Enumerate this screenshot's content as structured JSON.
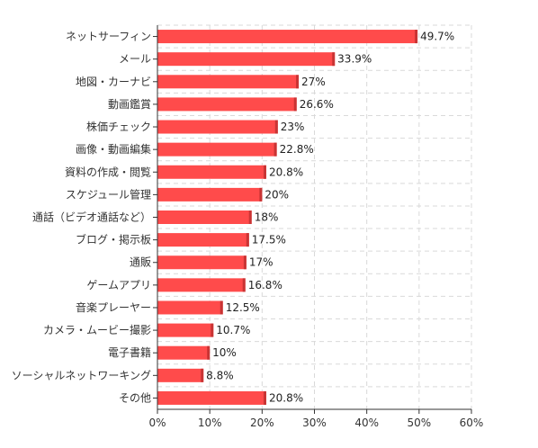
{
  "chart_data": {
    "type": "bar",
    "orientation": "horizontal",
    "categories": [
      "ネットサーフィン",
      "メール",
      "地図・カーナビ",
      "動画鑑賞",
      "株価チェック",
      "画像・動画編集",
      "資料の作成・閲覧",
      "スケジュール管理",
      "通話（ビデオ通話など）",
      "ブログ・掲示板",
      "通販",
      "ゲームアプリ",
      "音楽プレーヤー",
      "カメラ・ムービー撮影",
      "電子書籍",
      "ソーシャルネットワーキング",
      "その他"
    ],
    "values": [
      49.7,
      33.9,
      27,
      26.6,
      23,
      22.8,
      20.8,
      20,
      18,
      17.5,
      17,
      16.8,
      12.5,
      10.7,
      10,
      8.8,
      20.8
    ],
    "value_labels": [
      "49.7%",
      "33.9%",
      "27%",
      "26.6%",
      "23%",
      "22.8%",
      "20.8%",
      "20%",
      "18%",
      "17.5%",
      "17%",
      "16.8%",
      "12.5%",
      "10.7%",
      "10%",
      "8.8%",
      "20.8%"
    ],
    "x_ticks": [
      "0%",
      "10%",
      "20%",
      "30%",
      "40%",
      "50%",
      "60%"
    ],
    "xlim": [
      0,
      60
    ],
    "grid": true,
    "grid_style": "dashed",
    "bar_color": "#ff4b4b",
    "bar_edge_color": "#c93434",
    "title": "",
    "xlabel": "",
    "ylabel": ""
  }
}
